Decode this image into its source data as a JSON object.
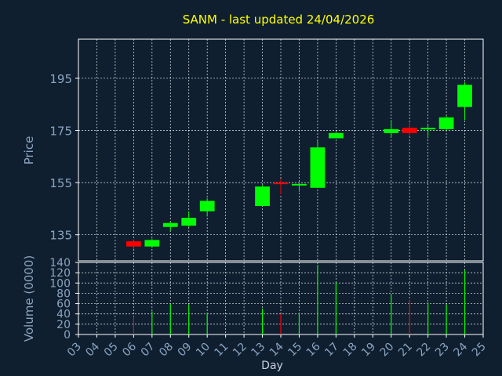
{
  "chart_data": {
    "type": "candlestick",
    "title": "SANM - last updated 24/04/2026",
    "ylabel": "Price",
    "volume_ylabel": "Volume (0000)",
    "xlabel": "Day",
    "x_ticks": [
      "03",
      "04",
      "05",
      "06",
      "07",
      "08",
      "09",
      "10",
      "11",
      "12",
      "13",
      "14",
      "15",
      "16",
      "17",
      "18",
      "19",
      "20",
      "21",
      "22",
      "23",
      "24",
      "25"
    ],
    "price_ticks": [
      135,
      155,
      175,
      195
    ],
    "volume_ticks": [
      0,
      20,
      40,
      60,
      80,
      100,
      120,
      140
    ],
    "price_range": [
      125,
      210
    ],
    "volume_range": [
      0,
      140
    ],
    "grid": true,
    "colors": {
      "background": "#0f1f30",
      "axis_text": "#8aa4c0",
      "title": "#ffff00",
      "up": "#00ff00",
      "down": "#ff0000",
      "grid": "#ffffff"
    },
    "candles": [
      {
        "day": "06",
        "open": 132.5,
        "high": 133.0,
        "low": 129.5,
        "close": 130.5,
        "volume": 35
      },
      {
        "day": "07",
        "open": 130.5,
        "high": 133.5,
        "low": 130.0,
        "close": 133.0,
        "volume": 45
      },
      {
        "day": "08",
        "open": 138.0,
        "high": 140.0,
        "low": 136.5,
        "close": 139.5,
        "volume": 60
      },
      {
        "day": "09",
        "open": 138.5,
        "high": 144.0,
        "low": 138.0,
        "close": 141.5,
        "volume": 58
      },
      {
        "day": "10",
        "open": 144.0,
        "high": 149.0,
        "low": 142.0,
        "close": 148.0,
        "volume": 42
      },
      {
        "day": "13",
        "open": 146.0,
        "high": 154.0,
        "low": 146.0,
        "close": 153.5,
        "volume": 50
      },
      {
        "day": "14",
        "open": 155.0,
        "high": 156.5,
        "low": 150.5,
        "close": 154.5,
        "volume": 40
      },
      {
        "day": "15",
        "open": 154.0,
        "high": 155.0,
        "low": 151.5,
        "close": 154.5,
        "volume": 42
      },
      {
        "day": "16",
        "open": 153.0,
        "high": 171.0,
        "low": 153.0,
        "close": 168.5,
        "volume": 135
      },
      {
        "day": "17",
        "open": 172.0,
        "high": 174.5,
        "low": 172.0,
        "close": 174.0,
        "volume": 102
      },
      {
        "day": "20",
        "open": 174.0,
        "high": 179.0,
        "low": 172.5,
        "close": 175.5,
        "volume": 78
      },
      {
        "day": "21",
        "open": 176.0,
        "high": 178.0,
        "low": 173.0,
        "close": 174.0,
        "volume": 67
      },
      {
        "day": "22",
        "open": 175.5,
        "high": 177.0,
        "low": 172.0,
        "close": 176.0,
        "volume": 62
      },
      {
        "day": "23",
        "open": 175.5,
        "high": 180.5,
        "low": 175.0,
        "close": 180.0,
        "volume": 58
      },
      {
        "day": "24",
        "open": 184.0,
        "high": 193.5,
        "low": 179.0,
        "close": 192.5,
        "volume": 125
      }
    ]
  }
}
